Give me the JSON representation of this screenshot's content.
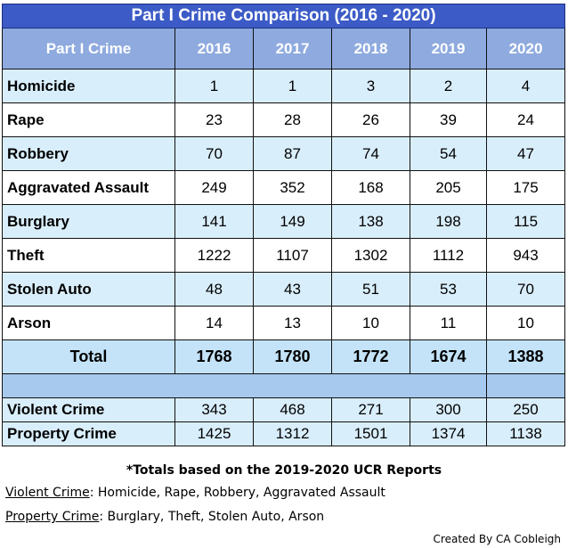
{
  "title": "Part I Crime Comparison (2016 - 2020)",
  "header": {
    "label": "Part I Crime",
    "years": [
      "2016",
      "2017",
      "2018",
      "2019",
      "2020"
    ]
  },
  "rows": [
    {
      "crime": "Homicide",
      "values": [
        "1",
        "1",
        "3",
        "2",
        "4"
      ]
    },
    {
      "crime": "Rape",
      "values": [
        "23",
        "28",
        "26",
        "39",
        "24"
      ]
    },
    {
      "crime": "Robbery",
      "values": [
        "70",
        "87",
        "74",
        "54",
        "47"
      ]
    },
    {
      "crime": "Aggravated Assault",
      "values": [
        "249",
        "352",
        "168",
        "205",
        "175"
      ]
    },
    {
      "crime": "Burglary",
      "values": [
        "141",
        "149",
        "138",
        "198",
        "115"
      ]
    },
    {
      "crime": "Theft",
      "values": [
        "1222",
        "1107",
        "1302",
        "1112",
        "943"
      ]
    },
    {
      "crime": "Stolen Auto",
      "values": [
        "48",
        "43",
        "51",
        "53",
        "70"
      ]
    },
    {
      "crime": "Arson",
      "values": [
        "14",
        "13",
        "10",
        "11",
        "10"
      ]
    }
  ],
  "total": {
    "label": "Total",
    "values": [
      "1768",
      "1780",
      "1772",
      "1674",
      "1388"
    ]
  },
  "summary": [
    {
      "label": "Violent Crime",
      "values": [
        "343",
        "468",
        "271",
        "300",
        "250"
      ]
    },
    {
      "label": "Property Crime",
      "values": [
        "1425",
        "1312",
        "1501",
        "1374",
        "1138"
      ]
    }
  ],
  "footnote": "*Totals based on the 2019-2020 UCR Reports",
  "definitions": {
    "violent_term": "Violent Crime",
    "violent_list": ": Homicide, Rape, Robbery, Aggravated Assault",
    "property_term": "Property Crime",
    "property_list": ": Burglary, Theft, Stolen Auto, Arson"
  },
  "credit": "Created By CA Cobleigh",
  "colors": {
    "title_bg": "#3c5bc7",
    "header_bg": "#8eaadf",
    "row_blue": "#d9eefb",
    "total_bg": "#c4e3f8",
    "spacer_bg": "#a8c9ee"
  }
}
